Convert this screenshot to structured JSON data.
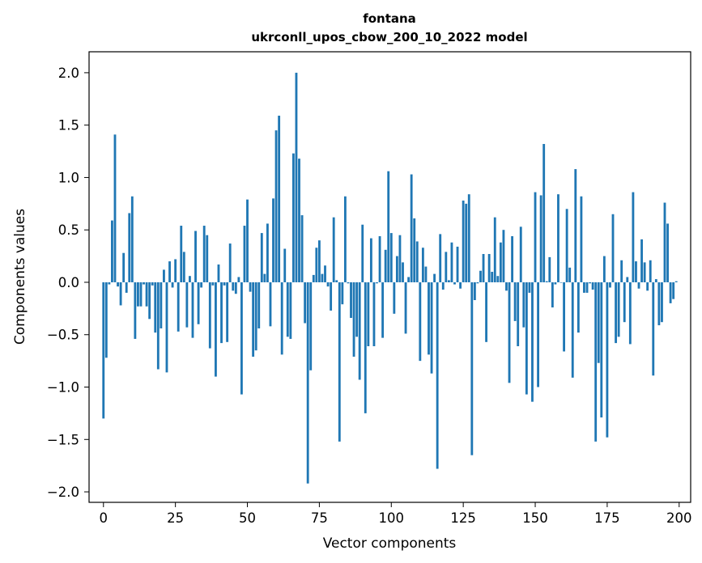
{
  "chart_data": {
    "type": "bar",
    "title": "fontana",
    "subtitle": "ukrconll_upos_cbow_200_10_2022 model",
    "xlabel": "Vector components",
    "ylabel": "Components values",
    "xlim": [
      -5,
      204
    ],
    "ylim": [
      -2.1,
      2.2
    ],
    "xticks": [
      0,
      25,
      50,
      75,
      100,
      125,
      150,
      175,
      200
    ],
    "yticks": [
      -2.0,
      -1.5,
      -1.0,
      -0.5,
      0.0,
      0.5,
      1.0,
      1.5,
      2.0
    ],
    "ytick_labels": [
      "−2.0",
      "−1.5",
      "−1.0",
      "−0.5",
      "0.0",
      "0.5",
      "1.0",
      "1.5",
      "2.0"
    ],
    "bar_color": "#1f77b4",
    "grid": false,
    "legend": "none",
    "values": [
      -1.3,
      -0.72,
      -0.02,
      0.59,
      1.41,
      -0.04,
      -0.22,
      0.28,
      -0.1,
      0.66,
      0.82,
      -0.54,
      -0.23,
      -0.23,
      -0.02,
      -0.23,
      -0.35,
      -0.03,
      -0.48,
      -0.83,
      -0.44,
      0.12,
      -0.86,
      0.2,
      -0.05,
      0.22,
      -0.47,
      0.54,
      0.29,
      -0.43,
      0.06,
      -0.53,
      0.49,
      -0.4,
      -0.05,
      0.54,
      0.45,
      -0.63,
      -0.03,
      -0.9,
      0.17,
      -0.58,
      -0.03,
      -0.57,
      0.37,
      -0.08,
      -0.11,
      0.05,
      -1.07,
      0.54,
      0.79,
      -0.09,
      -0.71,
      -0.65,
      -0.44,
      0.47,
      0.08,
      0.56,
      -0.42,
      0.8,
      1.45,
      1.59,
      -0.69,
      0.32,
      -0.52,
      -0.54,
      1.23,
      2.0,
      1.18,
      0.64,
      -0.39,
      -1.92,
      -0.84,
      0.07,
      0.33,
      0.4,
      0.08,
      0.16,
      -0.04,
      -0.27,
      0.62,
      0.02,
      -1.52,
      -0.21,
      0.82,
      -0.01,
      -0.34,
      -0.71,
      -0.52,
      -0.93,
      0.55,
      -1.25,
      -0.61,
      0.42,
      -0.61,
      -0.01,
      0.44,
      -0.53,
      0.31,
      1.06,
      0.47,
      -0.3,
      0.25,
      0.45,
      0.19,
      -0.49,
      0.05,
      1.03,
      0.61,
      0.39,
      -0.75,
      0.33,
      0.15,
      -0.69,
      -0.87,
      0.08,
      -1.78,
      0.46,
      -0.07,
      0.29,
      0.02,
      0.38,
      -0.02,
      0.34,
      -0.06,
      0.78,
      0.75,
      0.84,
      -1.65,
      -0.17,
      -0.01,
      0.11,
      0.27,
      -0.57,
      0.27,
      0.1,
      0.62,
      0.06,
      0.38,
      0.5,
      -0.08,
      -0.96,
      0.44,
      -0.37,
      -0.61,
      0.53,
      -0.43,
      -1.07,
      -0.1,
      -1.14,
      0.86,
      -1.0,
      0.83,
      1.32,
      0.01,
      0.24,
      -0.24,
      -0.02,
      0.84,
      0.0,
      -0.66,
      0.7,
      0.14,
      -0.91,
      1.08,
      -0.48,
      0.82,
      -0.1,
      -0.1,
      -0.01,
      -0.07,
      -1.52,
      -0.77,
      -1.29,
      0.25,
      -1.48,
      -0.05,
      0.65,
      -0.58,
      -0.52,
      0.21,
      -0.38,
      0.05,
      -0.59,
      0.86,
      0.2,
      -0.06,
      0.41,
      0.19,
      -0.08,
      0.21,
      -0.89,
      0.03,
      -0.41,
      -0.38,
      0.76,
      0.56,
      -0.2,
      -0.16,
      0.01
    ]
  }
}
